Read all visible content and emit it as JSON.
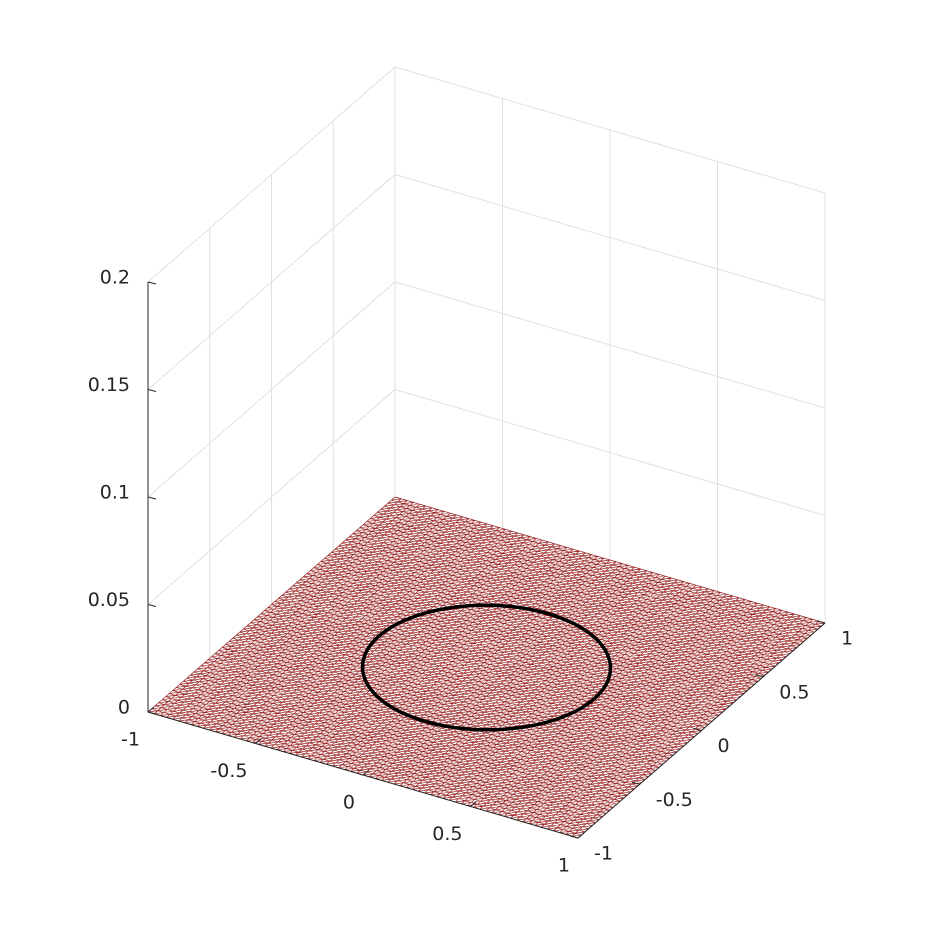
{
  "chart_data": {
    "type": "surface3d",
    "xlim": [
      -1,
      1
    ],
    "ylim": [
      -1,
      1
    ],
    "zlim": [
      0,
      0.2
    ],
    "xticks": [
      -1,
      -0.5,
      0,
      0.5,
      1
    ],
    "yticks": [
      -1,
      -0.5,
      0,
      0.5,
      1
    ],
    "zticks": [
      0,
      0.05,
      0.1,
      0.15,
      0.2
    ],
    "grid": true,
    "surface": {
      "z": 0,
      "edge_color": "#8b0000",
      "face_color": "#ffffff"
    },
    "circle": {
      "center": [
        0,
        0
      ],
      "radius": 0.5,
      "z": 0,
      "color": "#000000"
    }
  }
}
